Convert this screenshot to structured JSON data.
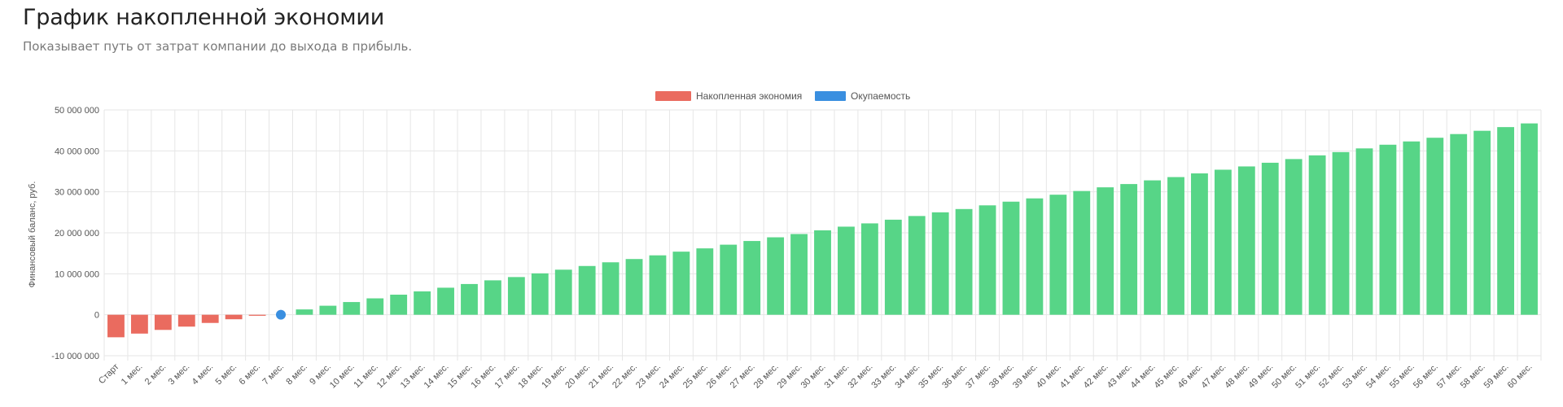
{
  "header": {
    "title": "График накопленной экономии",
    "subtitle": "Показывает путь от затрат компании до выхода в прибыль."
  },
  "colors": {
    "negative": "#ea6b5f",
    "positive": "#57d587",
    "payback": "#3a8fe0",
    "legend_savings": "#ea6b5f",
    "legend_payback": "#3a8fe0",
    "grid": "#e6e6e6"
  },
  "chart_data": {
    "type": "bar",
    "ylabel": "Финансовый баланс, руб.",
    "xlabel": "",
    "ylim": [
      -10000000,
      50000000
    ],
    "yticks": [
      "50 000 000",
      "40 000 000",
      "30 000 000",
      "20 000 000",
      "10 000 000",
      "0",
      "-10 000 000"
    ],
    "ytick_values": [
      50000000,
      40000000,
      30000000,
      20000000,
      10000000,
      0,
      -10000000
    ],
    "grid": true,
    "legend_position": "top-center",
    "legend": [
      {
        "label": "Накопленная экономия",
        "color": "#ea6b5f"
      },
      {
        "label": "Окупаемость",
        "color": "#3a8fe0"
      }
    ],
    "categories": [
      "Старт",
      "1 мес.",
      "2 мес.",
      "3 мес.",
      "4 мес.",
      "5 мес.",
      "6 мес.",
      "7 мес.",
      "8 мес.",
      "9 мес.",
      "10 мес.",
      "11 мес.",
      "12 мес.",
      "13 мес.",
      "14 мес.",
      "15 мес.",
      "16 мес.",
      "17 мес.",
      "18 мес.",
      "19 мес.",
      "20 мес.",
      "21 мес.",
      "22 мес.",
      "23 мес.",
      "24 мес.",
      "25 мес.",
      "26 мес.",
      "27 мес.",
      "28 мес.",
      "29 мес.",
      "30 мес.",
      "31 мес.",
      "32 мес.",
      "33 мес.",
      "34 мес.",
      "35 мес.",
      "36 мес.",
      "37 мес.",
      "38 мес.",
      "39 мес.",
      "40 мес.",
      "41 мес.",
      "42 мес.",
      "43 мес.",
      "44 мес.",
      "45 мес.",
      "46 мес.",
      "47 мес.",
      "48 мес.",
      "49 мес.",
      "50 мес.",
      "51 мес.",
      "52 мес.",
      "53 мес.",
      "54 мес.",
      "55 мес.",
      "56 мес.",
      "57 мес.",
      "58 мес.",
      "59 мес.",
      "60 мес."
    ],
    "series": [
      {
        "name": "Накопленная экономия",
        "values": [
          -5500000,
          -4600000,
          -3700000,
          -2900000,
          -2000000,
          -1100000,
          -250000,
          0,
          1300000,
          2200000,
          3100000,
          4000000,
          4900000,
          5700000,
          6600000,
          7500000,
          8400000,
          9200000,
          10100000,
          11000000,
          11900000,
          12800000,
          13600000,
          14500000,
          15400000,
          16200000,
          17100000,
          18000000,
          18900000,
          19700000,
          20600000,
          21500000,
          22300000,
          23200000,
          24100000,
          25000000,
          25800000,
          26700000,
          27600000,
          28400000,
          29300000,
          30200000,
          31100000,
          31900000,
          32800000,
          33600000,
          34500000,
          35400000,
          36200000,
          37100000,
          38000000,
          38900000,
          39700000,
          40600000,
          41500000,
          42300000,
          43200000,
          44100000,
          44900000,
          45800000,
          46700000
        ]
      },
      {
        "name": "Окупаемость",
        "points": [
          {
            "x": "7 мес.",
            "y": 0
          }
        ]
      }
    ]
  }
}
